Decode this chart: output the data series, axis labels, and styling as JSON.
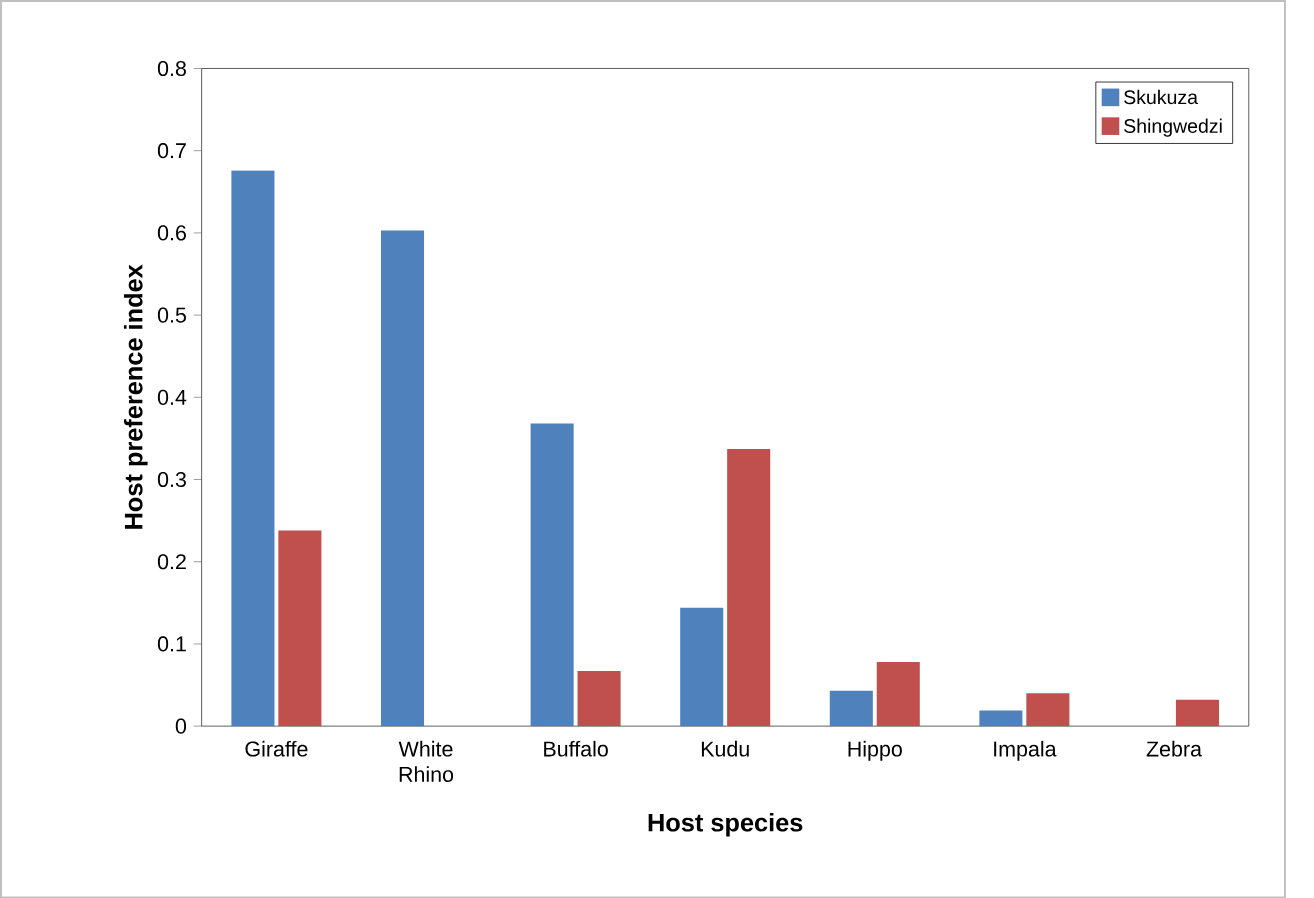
{
  "chart_data": {
    "type": "bar",
    "xlabel": "Host species",
    "ylabel": "Host preference index",
    "categories": [
      "Giraffe",
      "White Rhino",
      "Buffalo",
      "Kudu",
      "Hippo",
      "Impala",
      "Zebra"
    ],
    "series": [
      {
        "name": "Skukuza",
        "color": "#4f81bd",
        "values": [
          0.676,
          0.603,
          0.368,
          0.144,
          0.043,
          0.019,
          0
        ]
      },
      {
        "name": "Shingwedzi",
        "color": "#c0504d",
        "values": [
          0.238,
          0,
          0.067,
          0.337,
          0.078,
          0.04,
          0.032
        ]
      }
    ],
    "ylim": [
      0,
      0.8
    ],
    "yticks": [
      0,
      0.1,
      0.2,
      0.3,
      0.4,
      0.5,
      0.6,
      0.7,
      0.8
    ],
    "grid": false,
    "legend": "top right"
  }
}
